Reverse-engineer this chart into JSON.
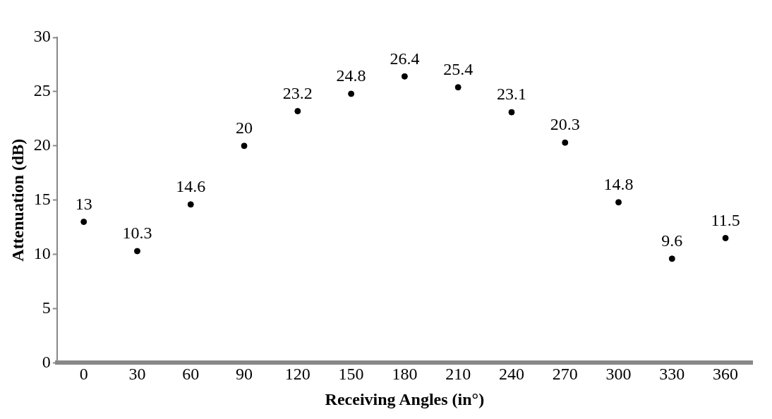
{
  "chart_data": {
    "type": "scatter",
    "xlabel": "Receiving Angles (in°)",
    "ylabel": "Attenuation (dB)",
    "x": [
      0,
      30,
      60,
      90,
      120,
      150,
      180,
      210,
      240,
      270,
      300,
      330,
      360
    ],
    "values": [
      13,
      10.3,
      14.6,
      20,
      23.2,
      24.8,
      26.4,
      25.4,
      23.1,
      20.3,
      14.8,
      9.6,
      11.5
    ],
    "color": "#000000",
    "xlim": [
      -15,
      375
    ],
    "xticks": [
      0,
      30,
      60,
      90,
      120,
      150,
      180,
      210,
      240,
      270,
      300,
      330,
      360
    ],
    "ylim": [
      0,
      30
    ],
    "yticks": [
      0,
      5,
      10,
      15,
      20,
      25,
      30
    ],
    "grid": false,
    "legend": false,
    "marker": "circle",
    "data_labels": true
  }
}
